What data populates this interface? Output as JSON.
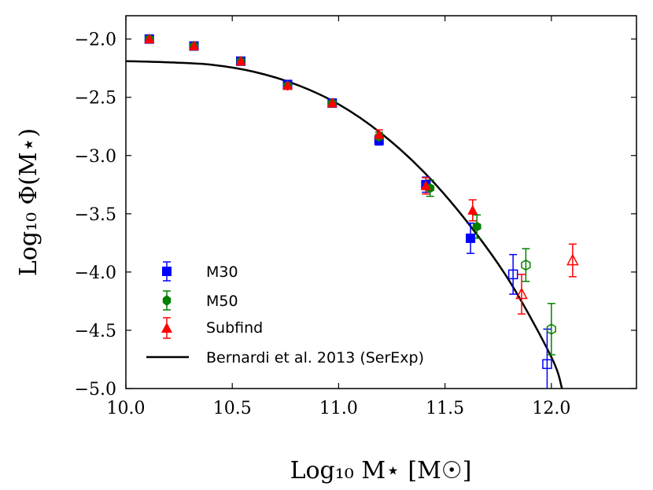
{
  "chart_data": {
    "type": "scatter",
    "title": "",
    "xlabel": "Log₁₀ M⋆ [M☉]",
    "ylabel": "Log₁₀ Φ(M⋆)",
    "xlim": [
      10.0,
      12.4
    ],
    "ylim": [
      -5.0,
      -1.8
    ],
    "xticks": [
      10.0,
      10.5,
      11.0,
      11.5,
      12.0
    ],
    "xtick_labels": [
      "10.0",
      "10.5",
      "11.0",
      "11.5",
      "12.0"
    ],
    "yticks": [
      -2.0,
      -2.5,
      -3.0,
      -3.5,
      -4.0,
      -4.5,
      -5.0
    ],
    "ytick_labels": [
      "−2.0",
      "−2.5",
      "−3.0",
      "−3.5",
      "−4.0",
      "−4.5",
      "−5.0"
    ],
    "legend_position": "lower-left",
    "series": [
      {
        "name": "M30",
        "marker": "square",
        "color": "#0000ff",
        "filled": [
          {
            "x": 10.11,
            "y": -2.0,
            "err": 0.015
          },
          {
            "x": 10.32,
            "y": -2.06,
            "err": 0.015
          },
          {
            "x": 10.54,
            "y": -2.19,
            "err": 0.015
          },
          {
            "x": 10.76,
            "y": -2.39,
            "err": 0.02
          },
          {
            "x": 10.97,
            "y": -2.55,
            "err": 0.025
          },
          {
            "x": 11.19,
            "y": -2.87,
            "err": 0.04
          },
          {
            "x": 11.41,
            "y": -3.25,
            "err": 0.065
          },
          {
            "x": 11.62,
            "y": -3.71,
            "err": 0.13
          }
        ],
        "open": [
          {
            "x": 11.82,
            "y": -4.02,
            "err": 0.17
          },
          {
            "x": 11.98,
            "y": -4.79,
            "err": 0.3
          }
        ]
      },
      {
        "name": "M50",
        "marker": "hexagon",
        "color": "#008000",
        "filled": [
          {
            "x": 10.11,
            "y": -2.0,
            "err": 0.015
          },
          {
            "x": 10.32,
            "y": -2.06,
            "err": 0.015
          },
          {
            "x": 10.54,
            "y": -2.19,
            "err": 0.015
          },
          {
            "x": 10.76,
            "y": -2.4,
            "err": 0.02
          },
          {
            "x": 10.97,
            "y": -2.55,
            "err": 0.025
          },
          {
            "x": 11.19,
            "y": -2.84,
            "err": 0.04
          },
          {
            "x": 11.43,
            "y": -3.28,
            "err": 0.07
          },
          {
            "x": 11.65,
            "y": -3.61,
            "err": 0.1
          }
        ],
        "open": [
          {
            "x": 11.88,
            "y": -3.94,
            "err": 0.14
          },
          {
            "x": 12.0,
            "y": -4.49,
            "err": 0.22
          }
        ]
      },
      {
        "name": "Subfind",
        "marker": "triangle",
        "color": "#ff0000",
        "filled": [
          {
            "x": 10.11,
            "y": -2.0,
            "err": 0.015
          },
          {
            "x": 10.32,
            "y": -2.06,
            "err": 0.015
          },
          {
            "x": 10.54,
            "y": -2.19,
            "err": 0.015
          },
          {
            "x": 10.76,
            "y": -2.4,
            "err": 0.02
          },
          {
            "x": 10.97,
            "y": -2.55,
            "err": 0.025
          },
          {
            "x": 11.19,
            "y": -2.82,
            "err": 0.04
          },
          {
            "x": 11.41,
            "y": -3.26,
            "err": 0.07
          },
          {
            "x": 11.63,
            "y": -3.47,
            "err": 0.09
          }
        ],
        "open": [
          {
            "x": 11.86,
            "y": -4.19,
            "err": 0.17
          },
          {
            "x": 12.1,
            "y": -3.9,
            "err": 0.14
          }
        ]
      }
    ],
    "model_line": {
      "name": "Bernardi et al. 2013 (SerExp)",
      "color": "#000000",
      "points": [
        {
          "x": 10.0,
          "y": -2.19
        },
        {
          "x": 10.2,
          "y": -2.2
        },
        {
          "x": 10.4,
          "y": -2.22
        },
        {
          "x": 10.6,
          "y": -2.28
        },
        {
          "x": 10.8,
          "y": -2.39
        },
        {
          "x": 11.0,
          "y": -2.56
        },
        {
          "x": 11.2,
          "y": -2.81
        },
        {
          "x": 11.4,
          "y": -3.14
        },
        {
          "x": 11.6,
          "y": -3.56
        },
        {
          "x": 11.8,
          "y": -4.07
        },
        {
          "x": 12.0,
          "y": -4.73
        },
        {
          "x": 12.05,
          "y": -5.0
        }
      ]
    }
  }
}
